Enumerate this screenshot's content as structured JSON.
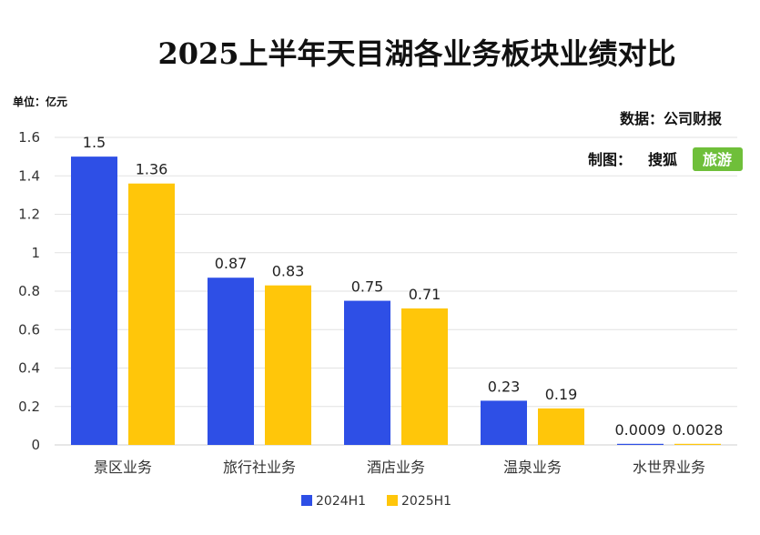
{
  "chart_data": {
    "type": "bar",
    "title": "2025上半年天目湖各业务板块业绩对比",
    "unit_label": "单位：亿元",
    "source_label": "数据：公司财报",
    "made_by_label": "制图：",
    "brand_text": "搜狐",
    "brand_badge": "旅游",
    "categories": [
      "景区业务",
      "旅行社业务",
      "酒店业务",
      "温泉业务",
      "水世界业务"
    ],
    "series": [
      {
        "name": "2024H1",
        "color": "#2e4fe6",
        "values": [
          1.5,
          0.87,
          0.75,
          0.23,
          0.0009
        ],
        "labels": [
          "1.5",
          "0.87",
          "0.75",
          "0.23",
          "0.0009"
        ]
      },
      {
        "name": "2025H1",
        "color": "#ffc60a",
        "values": [
          1.36,
          0.83,
          0.71,
          0.19,
          0.0028
        ],
        "labels": [
          "1.36",
          "0.83",
          "0.71",
          "0.19",
          "0.0028"
        ]
      }
    ],
    "ylim": [
      0,
      1.6
    ],
    "yticks": [
      0,
      0.2,
      0.4,
      0.6,
      0.8,
      1,
      1.2,
      1.4,
      1.6
    ],
    "ytick_labels": [
      "0",
      "0.2",
      "0.4",
      "0.6",
      "0.8",
      "1",
      "1.2",
      "1.4",
      "1.6"
    ],
    "grid": true,
    "legend_position": "bottom-center",
    "brand_badge_color": "#6fbf3a"
  }
}
